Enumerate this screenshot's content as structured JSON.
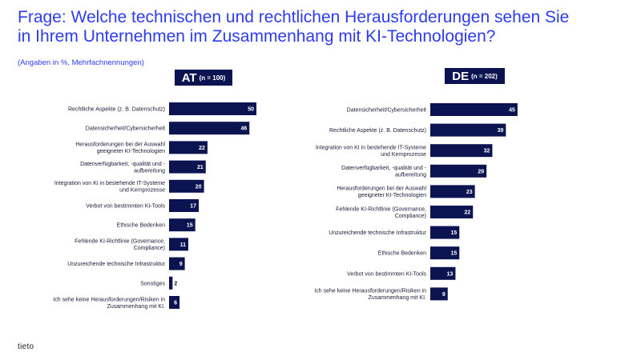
{
  "header": {
    "title": "Frage: Welche technischen und rechtlichen Herausforderungen sehen Sie in Ihrem Unternehmen im Zusammenhang mit KI-Technologien?",
    "subtitle": "(Angaben in %, Mehrfachnennungen)"
  },
  "logo": "tieto",
  "colors": {
    "bar": "#0b1450",
    "title": "#2d3cf0"
  },
  "chart_data": [
    {
      "type": "bar",
      "orientation": "horizontal",
      "panel": "AT",
      "panel_label": "AT",
      "panel_n": "(n = 100)",
      "categories": [
        [
          "Rechtliche Aspekte (z. B. Datenschutz)"
        ],
        [
          "Datensicherheit/Cybersicherheit"
        ],
        [
          "Herausforderungen bei der Auswahl",
          "geeigneter KI-Technologien"
        ],
        [
          "Datenverfügbarkeit, -qualität und -",
          "aufbereitung"
        ],
        [
          "Integration von KI in bestehende IT-Systeme",
          "und Kernprozesse"
        ],
        [
          "Verbot von bestimmten KI-Tools"
        ],
        [
          "Ethische Bedenken"
        ],
        [
          "Fehlende KI-Richtlinie (Governance,",
          "Compliance)"
        ],
        [
          "Unzureichende technische Infrastruktur"
        ],
        [
          "Sonstiges"
        ],
        [
          "Ich sehe keine Herausforderungen/Risiken in",
          "Zusammenhang mit KI."
        ]
      ],
      "values": [
        50,
        46,
        22,
        21,
        20,
        17,
        15,
        11,
        9,
        2,
        6
      ],
      "value_labels": [
        "50",
        "46",
        "22",
        "21",
        "20",
        "17",
        "15",
        "11",
        "9",
        "2",
        "6"
      ]
    },
    {
      "type": "bar",
      "orientation": "horizontal",
      "panel": "DE",
      "panel_label": "DE",
      "panel_n": "(n = 202)",
      "categories": [
        [
          "Datensicherheit/Cybersicherheit"
        ],
        [
          "Rechtliche Aspekte (z. B. Datenschutz)"
        ],
        [
          "Integration von KI in bestehende IT-Systeme",
          "und Kernprozesse"
        ],
        [
          "Datenverfügbarkeit, -qualität und -",
          "aufbereitung"
        ],
        [
          "Herausforderungen bei der Auswahl",
          "geeigneter KI-Technologien"
        ],
        [
          "Fehlende KI-Richtlinie (Governance,",
          "Compliance)"
        ],
        [
          "Unzureichende technische Infrastruktur"
        ],
        [
          "Ethische Bedenken"
        ],
        [
          "Verbot von bestimmten KI-Tools"
        ],
        [
          "Ich sehe keine Herausforderungen/Risiken in",
          "Zusammenhang mit KI."
        ]
      ],
      "values": [
        45,
        39,
        32,
        29,
        23,
        22,
        15,
        15,
        13,
        9
      ],
      "value_labels": [
        "45",
        "39",
        "32",
        "29",
        "23",
        "22",
        "15",
        "15",
        "13",
        "9"
      ]
    }
  ]
}
